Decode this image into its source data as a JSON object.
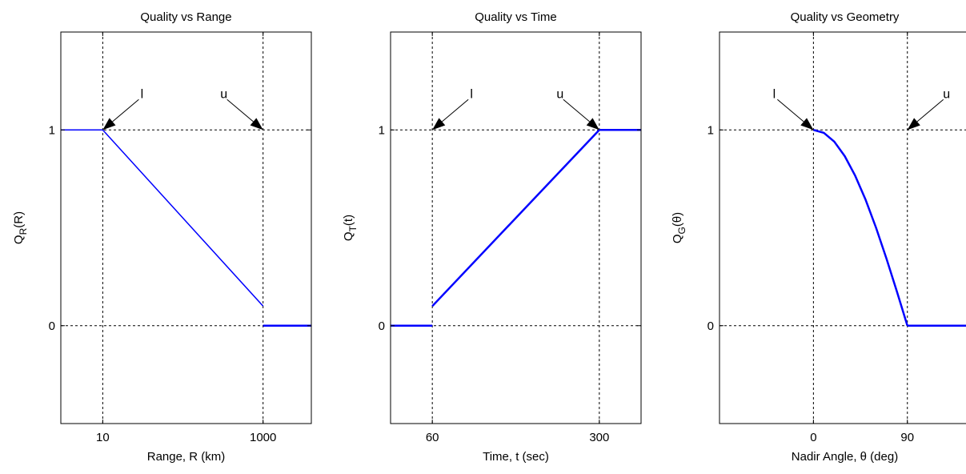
{
  "chart_data": [
    {
      "type": "line",
      "title": "Quality vs Range",
      "xlabel": "Range, R (km)",
      "ylabel": {
        "main": "Q",
        "sub": "R",
        "suffix": "(R)"
      },
      "xscale": "log",
      "xlim": [
        3,
        4000
      ],
      "ylim": [
        -0.5,
        1.5
      ],
      "xticks": [
        {
          "value": 10,
          "label": "10"
        },
        {
          "value": 1000,
          "label": "1000"
        }
      ],
      "yticks": [
        {
          "value": 0,
          "label": "0"
        },
        {
          "value": 1,
          "label": "1"
        }
      ],
      "grid": false,
      "series": [
        {
          "color": "#0000ff",
          "width": 1.5,
          "points": [
            [
              3,
              1
            ],
            [
              10,
              1
            ]
          ]
        },
        {
          "color": "#0000ff",
          "width": 1.5,
          "points": [
            [
              10,
              1
            ],
            [
              1000,
              0.1
            ]
          ]
        },
        {
          "color": "#0000ff",
          "width": 2.5,
          "points": [
            [
              1000,
              0
            ],
            [
              4000,
              0
            ]
          ]
        }
      ],
      "reference_lines": {
        "vertical": [
          10,
          1000
        ],
        "horizontal": [
          0,
          1
        ]
      },
      "annotations": [
        {
          "text": "l",
          "points_to": [
            10,
            1
          ],
          "from_side": "right"
        },
        {
          "text": "u",
          "points_to": [
            1000,
            1
          ],
          "from_side": "left"
        }
      ]
    },
    {
      "type": "line",
      "title": "Quality vs Time",
      "xlabel": "Time, t (sec)",
      "ylabel": {
        "main": "Q",
        "sub": "T",
        "suffix": "(t)"
      },
      "xscale": "linear",
      "xlim": [
        0,
        360
      ],
      "ylim": [
        -0.5,
        1.5
      ],
      "xticks": [
        {
          "value": 60,
          "label": "60"
        },
        {
          "value": 300,
          "label": "300"
        }
      ],
      "yticks": [
        {
          "value": 0,
          "label": "0"
        },
        {
          "value": 1,
          "label": "1"
        }
      ],
      "grid": false,
      "series": [
        {
          "color": "#0000ff",
          "width": 2.5,
          "points": [
            [
              0,
              0
            ],
            [
              60,
              0
            ]
          ]
        },
        {
          "color": "#0000ff",
          "width": 2.5,
          "points": [
            [
              60,
              0.1
            ],
            [
              300,
              1
            ]
          ]
        },
        {
          "color": "#0000ff",
          "width": 2.5,
          "points": [
            [
              300,
              1
            ],
            [
              360,
              1
            ]
          ]
        }
      ],
      "reference_lines": {
        "vertical": [
          60,
          300
        ],
        "horizontal": [
          0,
          1
        ]
      },
      "annotations": [
        {
          "text": "l",
          "points_to": [
            60,
            1
          ],
          "from_side": "right"
        },
        {
          "text": "u",
          "points_to": [
            300,
            1
          ],
          "from_side": "left"
        }
      ]
    },
    {
      "type": "line",
      "title": "Quality vs Geometry",
      "xlabel": "Nadir Angle, θ (deg)",
      "ylabel": {
        "main": "Q",
        "sub": "G",
        "suffix": "(θ)"
      },
      "xscale": "linear",
      "xlim": [
        -90,
        150
      ],
      "ylim": [
        -0.5,
        1.5
      ],
      "xticks": [
        {
          "value": 0,
          "label": "0"
        },
        {
          "value": 90,
          "label": "90"
        }
      ],
      "yticks": [
        {
          "value": 0,
          "label": "0"
        },
        {
          "value": 1,
          "label": "1"
        }
      ],
      "grid": false,
      "series": [
        {
          "color": "#0000ff",
          "width": 2.5,
          "points": [
            [
              0,
              1
            ],
            [
              10,
              0.985
            ],
            [
              20,
              0.94
            ],
            [
              30,
              0.866
            ],
            [
              40,
              0.766
            ],
            [
              50,
              0.643
            ],
            [
              60,
              0.5
            ],
            [
              70,
              0.342
            ],
            [
              80,
              0.174
            ],
            [
              90,
              0
            ]
          ]
        },
        {
          "color": "#0000ff",
          "width": 2.5,
          "points": [
            [
              90,
              0
            ],
            [
              150,
              0
            ]
          ]
        }
      ],
      "reference_lines": {
        "vertical": [
          0,
          90
        ],
        "horizontal": [
          0,
          1
        ]
      },
      "annotations": [
        {
          "text": "l",
          "points_to": [
            0,
            1
          ],
          "from_side": "left"
        },
        {
          "text": "u",
          "points_to": [
            90,
            1
          ],
          "from_side": "right"
        }
      ]
    }
  ]
}
